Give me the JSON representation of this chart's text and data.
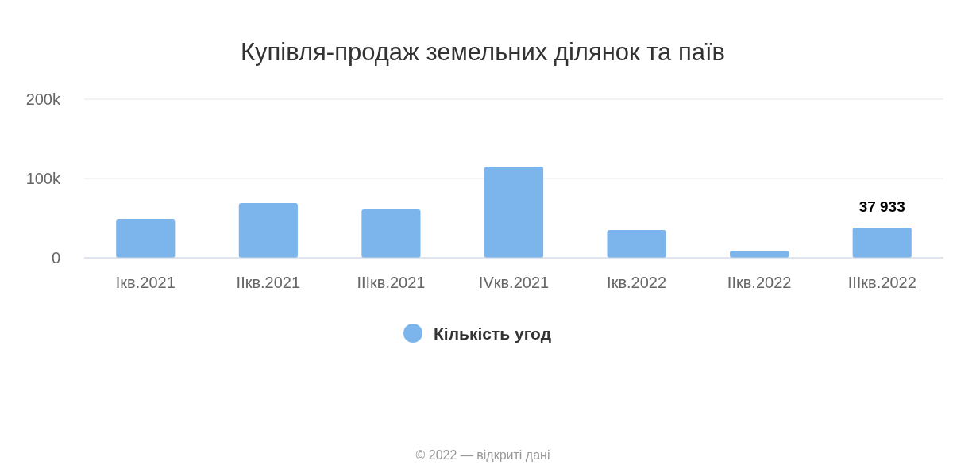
{
  "chart_data": {
    "type": "bar",
    "title": "Купівля-продаж земельних ділянок та паїв",
    "categories": [
      "Iкв.2021",
      "IIкв.2021",
      "IIIкв.2021",
      "IVкв.2021",
      "Iкв.2022",
      "IIкв.2022",
      "IIIкв.2022"
    ],
    "series": [
      {
        "name": "Кількість угод",
        "color": "#7cb5ec",
        "values": [
          49000,
          69000,
          61000,
          115000,
          35000,
          9000,
          37933
        ],
        "value_labels": [
          null,
          null,
          null,
          null,
          null,
          null,
          "37 933"
        ]
      }
    ],
    "ylim": [
      0,
      200000
    ],
    "yticks": [
      {
        "value": 0,
        "label": "0"
      },
      {
        "value": 100000,
        "label": "100k"
      },
      {
        "value": 200000,
        "label": "200k"
      }
    ],
    "grid": "y",
    "legend": "bottom",
    "marker": "circle",
    "annotations": [
      "© 2022 — відкриті дані"
    ]
  }
}
